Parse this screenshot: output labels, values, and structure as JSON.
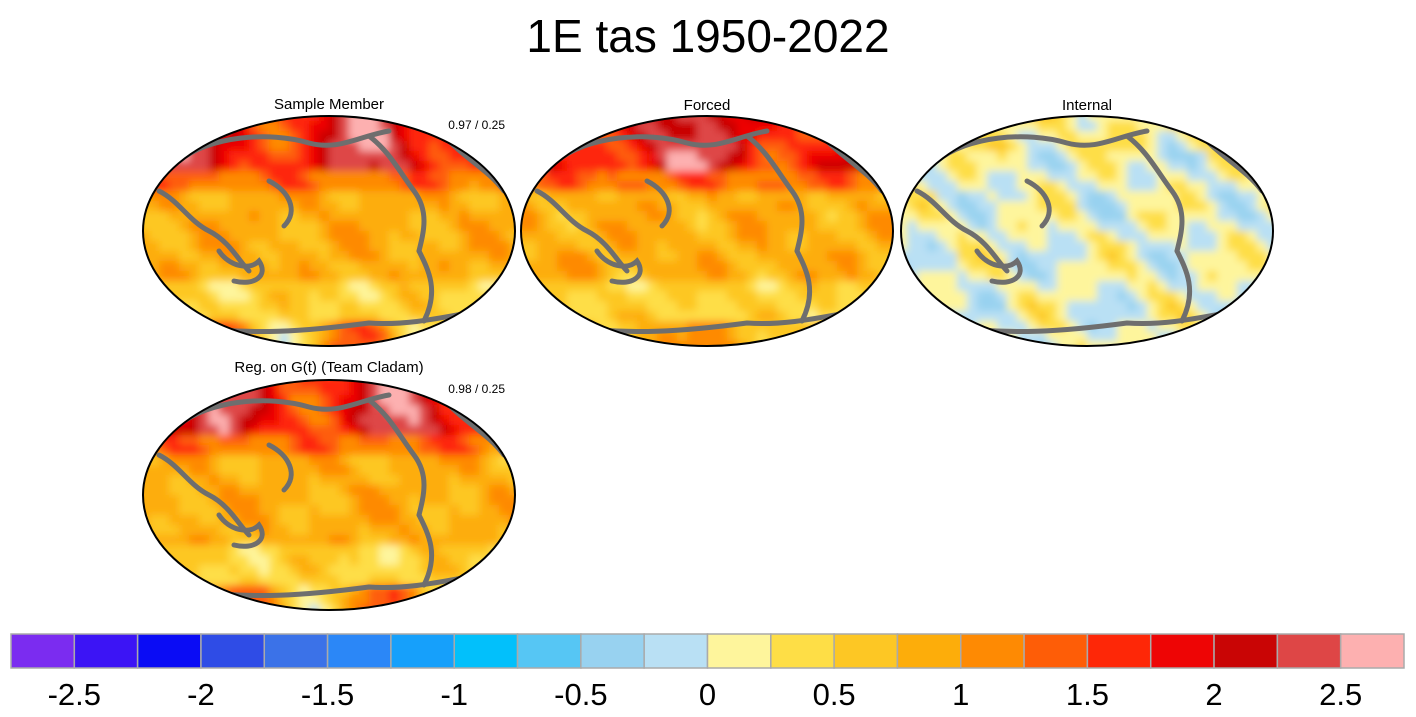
{
  "chart_data": {
    "type": "map",
    "title": "1E tas 1950-2022",
    "panels": [
      {
        "title": "Sample Member",
        "stats": "0.97 / 0.25",
        "field": "warming"
      },
      {
        "title": "Forced",
        "stats": "",
        "field": "forced"
      },
      {
        "title": "Internal",
        "stats": "",
        "field": "internal"
      },
      {
        "title": "Reg. on G(t) (Team Cladam)",
        "stats": "0.98 / 0.25",
        "field": "warming"
      }
    ],
    "colorbar": {
      "colors": [
        "#7b2cf0",
        "#3c14f5",
        "#0a0cf5",
        "#2f4ce6",
        "#3b72e8",
        "#2b87f7",
        "#16a0fb",
        "#02c0fb",
        "#56c6f4",
        "#98d2f0",
        "#b9e0f4",
        "#fef59c",
        "#fede46",
        "#fdc724",
        "#fdad0a",
        "#fe8a03",
        "#fe5d07",
        "#fe2707",
        "#ee0505",
        "#c90505",
        "#de4646",
        "#fdb0b0"
      ],
      "tick_labels": [
        "-2.5",
        "-2",
        "-1.5",
        "-1",
        "-0.5",
        "0",
        "0.5",
        "1",
        "1.5",
        "2",
        "2.5"
      ],
      "tick_values": [
        -2.5,
        -2,
        -1.5,
        -1,
        -0.5,
        0,
        0.5,
        1,
        1.5,
        2,
        2.5
      ],
      "range": [
        -2.75,
        2.75
      ]
    }
  }
}
